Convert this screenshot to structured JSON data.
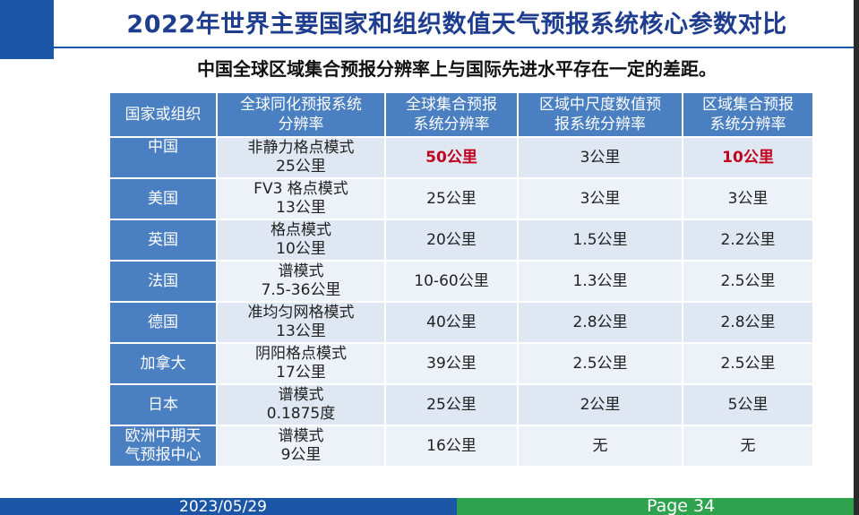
{
  "slide": {
    "title": "2022年世界主要国家和组织数值天气预报系统核心参数对比",
    "subtitle": "中国全球区域集合预报分辨率上与国际先进水平存在一定的差距。",
    "footer_date": "2023/05/29",
    "footer_page": "Page 34"
  },
  "colors": {
    "title": "#1f3d8f",
    "header_bg": "#4a7fc1",
    "highlight": "#c0001c",
    "footer_blue": "#1b56a6",
    "footer_green": "#2ea24d"
  },
  "table": {
    "headers": [
      [
        "国家或组织"
      ],
      [
        "全球同化预报系统",
        "分辨率"
      ],
      [
        "全球集合预报",
        "系统分辨率"
      ],
      [
        "区域中尺度数值预",
        "报系统分辨率"
      ],
      [
        "区域集合预报",
        "系统分辨率"
      ]
    ],
    "rows": [
      {
        "country": [
          "中国"
        ],
        "assim": [
          "非静力格点模式",
          "25公里"
        ],
        "global_ens": "50公里",
        "meso": "3公里",
        "reg_ens": "10公里"
      },
      {
        "country": [
          "美国"
        ],
        "assim": [
          "FV3 格点模式",
          "13公里"
        ],
        "global_ens": "25公里",
        "meso": "3公里",
        "reg_ens": "3公里"
      },
      {
        "country": [
          "英国"
        ],
        "assim": [
          "格点模式",
          "10公里"
        ],
        "global_ens": "20公里",
        "meso": "1.5公里",
        "reg_ens": "2.2公里"
      },
      {
        "country": [
          "法国"
        ],
        "assim": [
          "谱模式",
          "7.5-36公里"
        ],
        "global_ens": "10-60公里",
        "meso": "1.3公里",
        "reg_ens": "2.5公里"
      },
      {
        "country": [
          "德国"
        ],
        "assim": [
          "准均匀网格模式",
          "13公里"
        ],
        "global_ens": "40公里",
        "meso": "2.8公里",
        "reg_ens": "2.8公里"
      },
      {
        "country": [
          "加拿大"
        ],
        "assim": [
          "阴阳格点模式",
          "17公里"
        ],
        "global_ens": "39公里",
        "meso": "2.5公里",
        "reg_ens": "2.5公里"
      },
      {
        "country": [
          "日本"
        ],
        "assim": [
          "谱模式",
          "0.1875度"
        ],
        "global_ens": "25公里",
        "meso": "2公里",
        "reg_ens": "5公里"
      },
      {
        "country": [
          "欧洲中期天",
          "气预报中心"
        ],
        "assim": [
          "谱模式",
          "9公里"
        ],
        "global_ens": "16公里",
        "meso": "无",
        "reg_ens": "无"
      }
    ]
  }
}
